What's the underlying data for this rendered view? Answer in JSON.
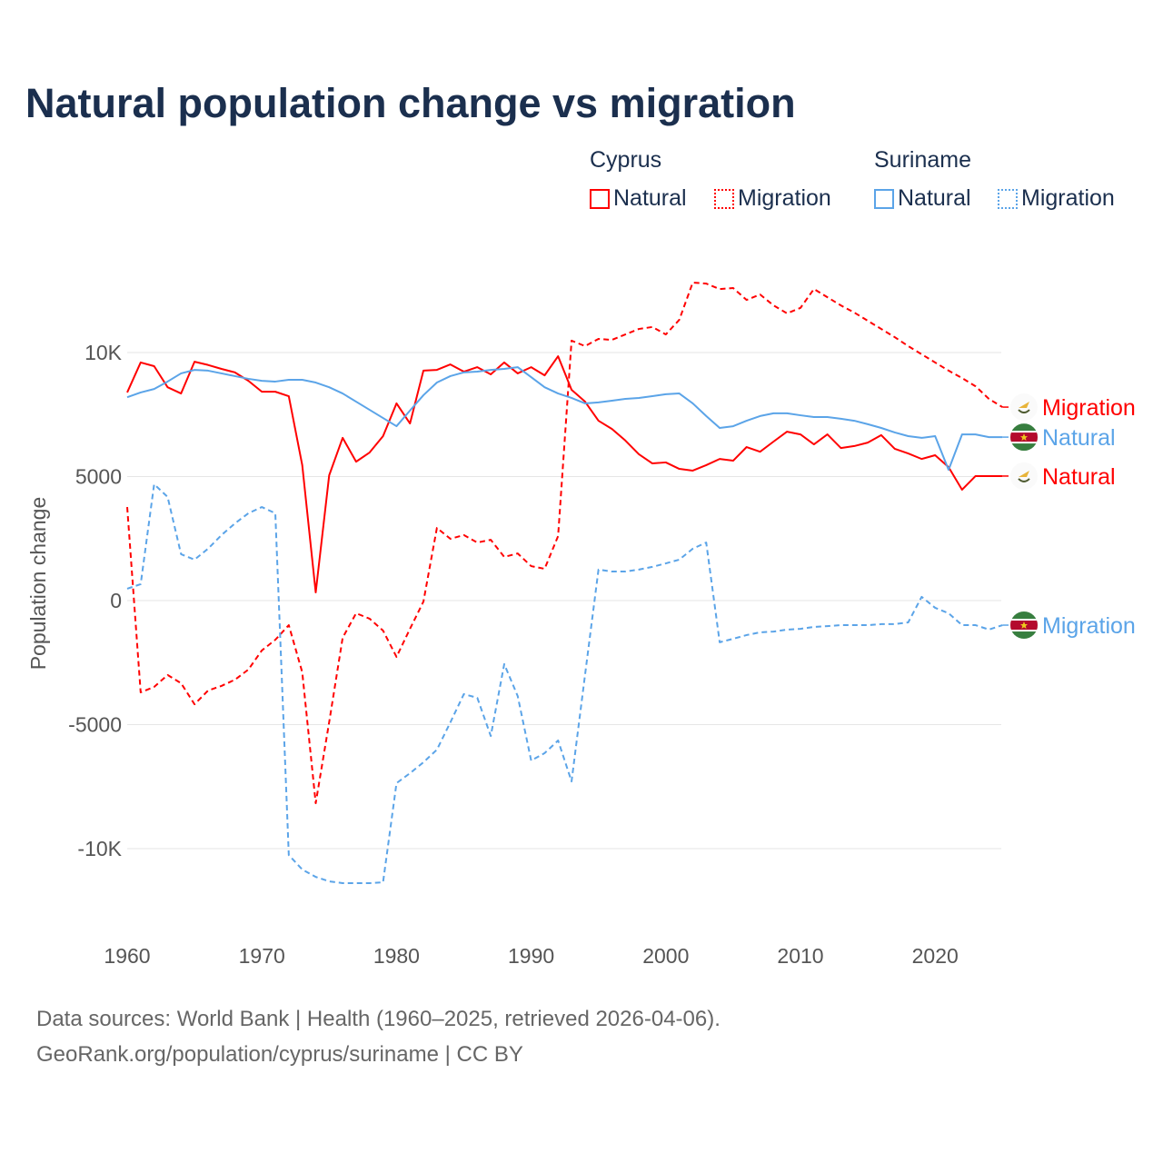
{
  "title": "Natural population change vs migration",
  "legend": {
    "groups": [
      {
        "name": "Cyprus",
        "items": [
          "Natural",
          "Migration"
        ]
      },
      {
        "name": "Suriname",
        "items": [
          "Natural",
          "Migration"
        ]
      }
    ]
  },
  "footer": {
    "line1": "Data sources: World Bank | Health (1960–2025, retrieved 2026-04-06).",
    "line2": "GeoRank.org/population/cyprus/suriname | CC BY"
  },
  "colors": {
    "cyprus": "#ff0000",
    "suriname": "#5ba4e8",
    "title": "#1b2f4e"
  },
  "chart_data": {
    "type": "line",
    "title": "Natural population change vs migration",
    "xlabel": "",
    "ylabel": "Population change",
    "xlim": [
      1960,
      2025
    ],
    "ylim": [
      -12500,
      13500
    ],
    "x_ticks": [
      1960,
      1970,
      1980,
      1990,
      2000,
      2010,
      2020
    ],
    "x_tick_labels": [
      "1960",
      "1970",
      "1980",
      "1990",
      "2000",
      "2010",
      "2020"
    ],
    "y_ticks": [
      -10000,
      -5000,
      0,
      5000,
      10000
    ],
    "y_tick_labels": [
      "-10K",
      "-5000",
      "0",
      "5000",
      "10K"
    ],
    "grid": true,
    "legend_position": "top-right",
    "x_start": 1960,
    "series": [
      {
        "name": "Cyprus Natural",
        "country": "Cyprus",
        "kind": "Natural",
        "end_label": "Natural",
        "flag": "cyprus-flag",
        "dashed": false,
        "values": [
          8390,
          9600,
          9450,
          8600,
          8350,
          9630,
          9500,
          9340,
          9200,
          8860,
          8420,
          8420,
          8240,
          5460,
          330,
          5050,
          6560,
          5600,
          5970,
          6630,
          7950,
          7140,
          9270,
          9300,
          9520,
          9230,
          9410,
          9120,
          9600,
          9160,
          9410,
          9080,
          9850,
          8500,
          8020,
          7250,
          6920,
          6450,
          5900,
          5530,
          5570,
          5310,
          5240,
          5460,
          5710,
          5640,
          6190,
          6000,
          6410,
          6810,
          6700,
          6300,
          6700,
          6150,
          6230,
          6370,
          6670,
          6120,
          5930,
          5710,
          5860,
          5380,
          4470,
          5020,
          5020,
          5020
        ]
      },
      {
        "name": "Cyprus Migration",
        "country": "Cyprus",
        "kind": "Migration",
        "end_label": "Migration",
        "flag": "cyprus-flag",
        "dashed": true,
        "values": [
          3770,
          -3700,
          -3480,
          -3000,
          -3330,
          -4180,
          -3630,
          -3440,
          -3190,
          -2780,
          -2010,
          -1580,
          -990,
          -2890,
          -8170,
          -4900,
          -1500,
          -510,
          -730,
          -1210,
          -2270,
          -1140,
          -40,
          2930,
          2490,
          2640,
          2340,
          2450,
          1760,
          1900,
          1390,
          1280,
          2600,
          10480,
          10260,
          10550,
          10510,
          10730,
          10950,
          11030,
          10730,
          11320,
          12820,
          12780,
          12560,
          12600,
          12120,
          12340,
          11900,
          11580,
          11800,
          12560,
          12230,
          11900,
          11610,
          11280,
          10950,
          10620,
          10260,
          9930,
          9600,
          9270,
          8970,
          8640,
          8130,
          7800
        ]
      },
      {
        "name": "Suriname Natural",
        "country": "Suriname",
        "kind": "Natural",
        "end_label": "Natural",
        "flag": "suriname-flag",
        "dashed": false,
        "values": [
          8200,
          8390,
          8530,
          8830,
          9160,
          9300,
          9270,
          9160,
          9050,
          8940,
          8860,
          8830,
          8900,
          8900,
          8790,
          8600,
          8350,
          8020,
          7690,
          7360,
          7030,
          7660,
          8280,
          8790,
          9050,
          9200,
          9230,
          9300,
          9340,
          9410,
          9010,
          8600,
          8350,
          8170,
          7950,
          7990,
          8060,
          8130,
          8170,
          8240,
          8320,
          8350,
          7950,
          7440,
          6960,
          7030,
          7250,
          7440,
          7550,
          7550,
          7470,
          7400,
          7400,
          7330,
          7250,
          7110,
          6960,
          6780,
          6630,
          6560,
          6630,
          5270,
          6700,
          6700,
          6590,
          6590
        ]
      },
      {
        "name": "Suriname Migration",
        "country": "Suriname",
        "kind": "Migration",
        "end_label": "Migration",
        "flag": "suriname-flag",
        "dashed": true,
        "values": [
          480,
          660,
          4690,
          4180,
          1870,
          1650,
          2090,
          2640,
          3110,
          3520,
          3770,
          3520,
          -10260,
          -10840,
          -11140,
          -11320,
          -11390,
          -11390,
          -11390,
          -11360,
          -7360,
          -6960,
          -6520,
          -6010,
          -4910,
          -3770,
          -3920,
          -5460,
          -2560,
          -3850,
          -6450,
          -6150,
          -5640,
          -7290,
          -3000,
          1250,
          1170,
          1170,
          1250,
          1360,
          1500,
          1650,
          2090,
          2340,
          -1680,
          -1540,
          -1390,
          -1280,
          -1250,
          -1170,
          -1140,
          -1060,
          -1030,
          -990,
          -990,
          -990,
          -950,
          -950,
          -880,
          150,
          -290,
          -510,
          -990,
          -990,
          -1170,
          -990
        ]
      }
    ]
  }
}
